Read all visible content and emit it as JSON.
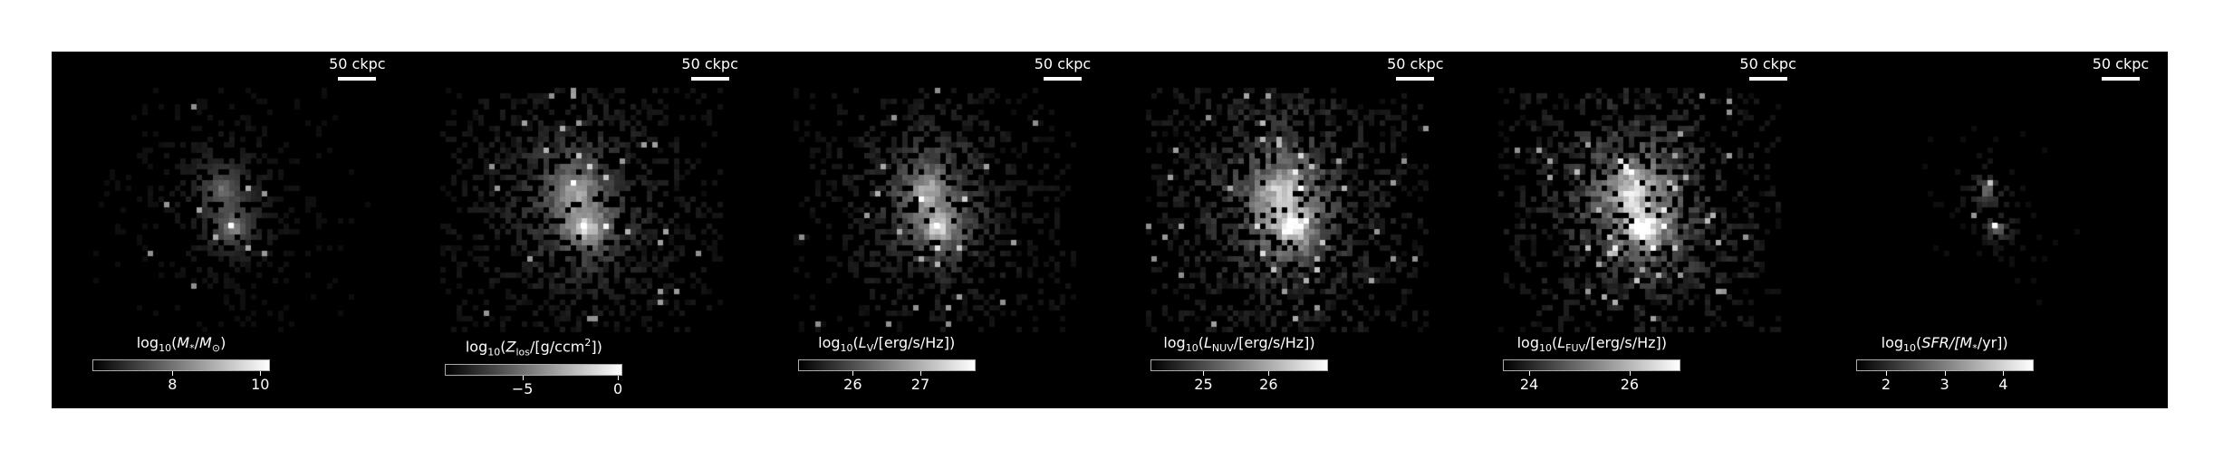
{
  "scale_label": "50 ckpc",
  "panels": [
    {
      "id": "stellar-mass",
      "cbar": {
        "pre": "log",
        "sub": "10",
        "open": "(",
        "var": "M",
        "vsub": "*",
        "slash": "/",
        "unitvar": "M",
        "unitsub": "⊙",
        "close": ")"
      },
      "ticks": [
        {
          "v": 8,
          "label": "8"
        },
        {
          "v": 10,
          "label": "10"
        }
      ],
      "range": [
        6.2,
        10.2
      ],
      "seed": 11,
      "intensity": 0.55,
      "extent": 0.55,
      "spread": 1.0
    },
    {
      "id": "metallicity",
      "cbar": {
        "pre": "log",
        "sub": "10",
        "open": "(",
        "var": "Z",
        "vsub": "los",
        "slash": "/",
        "unit": "[g/ccm",
        "sup": "2",
        "unitclose": "])"
      },
      "ticks": [
        {
          "v": -5,
          "label": "−5"
        },
        {
          "v": 0,
          "label": "0"
        }
      ],
      "range": [
        -9,
        0.2
      ],
      "seed": 23,
      "intensity": 0.8,
      "extent": 1.0,
      "spread": 1.3
    },
    {
      "id": "v-band",
      "cbar": {
        "pre": "log",
        "sub": "10",
        "open": "(",
        "var": "L",
        "vsub": "V",
        "slash": "/",
        "unit": "[erg/s/Hz])"
      },
      "ticks": [
        {
          "v": 26,
          "label": "26"
        },
        {
          "v": 27,
          "label": "27"
        }
      ],
      "range": [
        25.2,
        27.8
      ],
      "seed": 37,
      "intensity": 0.85,
      "extent": 0.9,
      "spread": 1.2
    },
    {
      "id": "nuv-band",
      "cbar": {
        "pre": "log",
        "sub": "10",
        "open": "(",
        "var": "L",
        "vsub": "NUV",
        "slash": "/",
        "unit": "[erg/s/Hz])"
      },
      "ticks": [
        {
          "v": 25,
          "label": "25"
        },
        {
          "v": 26,
          "label": "26"
        }
      ],
      "range": [
        24.2,
        26.9
      ],
      "seed": 51,
      "intensity": 1.0,
      "extent": 1.05,
      "spread": 1.3
    },
    {
      "id": "fuv-band",
      "cbar": {
        "pre": "log",
        "sub": "10",
        "open": "(",
        "var": "L",
        "vsub": "FUV",
        "slash": "/",
        "unit": "[erg/s/Hz])"
      },
      "ticks": [
        {
          "v": 24,
          "label": "24"
        },
        {
          "v": 26,
          "label": "26"
        }
      ],
      "range": [
        23.5,
        27.0
      ],
      "seed": 67,
      "intensity": 1.05,
      "extent": 1.05,
      "spread": 1.3
    },
    {
      "id": "sfr",
      "cbar": {
        "pre": "log",
        "sub": "10",
        "open": "(",
        "var": "SFR/[M",
        "vsub": "*",
        "slash": "",
        "unit": "/yr])"
      },
      "ticks": [
        {
          "v": 2,
          "label": "2"
        },
        {
          "v": 3,
          "label": "3"
        },
        {
          "v": 4,
          "label": "4"
        }
      ],
      "range": [
        1.5,
        4.5
      ],
      "seed": 83,
      "intensity": 0.6,
      "extent": 0.25,
      "spread": 0.5
    }
  ]
}
